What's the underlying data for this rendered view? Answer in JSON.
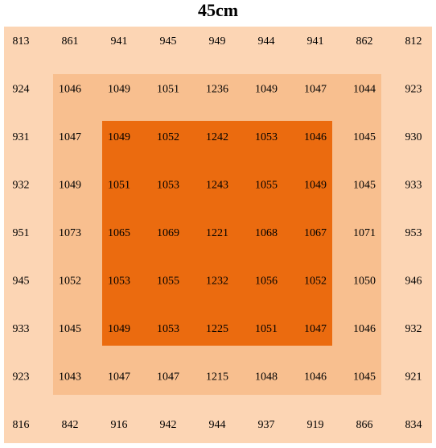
{
  "title": "45cm",
  "table": {
    "rows": [
      [
        813,
        861,
        941,
        945,
        949,
        944,
        941,
        862,
        812
      ],
      [
        924,
        1046,
        1049,
        1051,
        1236,
        1049,
        1047,
        1044,
        923
      ],
      [
        931,
        1047,
        1049,
        1052,
        1242,
        1053,
        1046,
        1045,
        930
      ],
      [
        932,
        1049,
        1051,
        1053,
        1243,
        1055,
        1049,
        1045,
        933
      ],
      [
        951,
        1073,
        1065,
        1069,
        1221,
        1068,
        1067,
        1071,
        953
      ],
      [
        945,
        1052,
        1053,
        1055,
        1232,
        1056,
        1052,
        1050,
        946
      ],
      [
        933,
        1045,
        1049,
        1053,
        1225,
        1051,
        1047,
        1046,
        932
      ],
      [
        923,
        1043,
        1047,
        1047,
        1215,
        1048,
        1046,
        1045,
        921
      ],
      [
        816,
        842,
        916,
        942,
        944,
        937,
        919,
        866,
        834
      ]
    ]
  }
}
